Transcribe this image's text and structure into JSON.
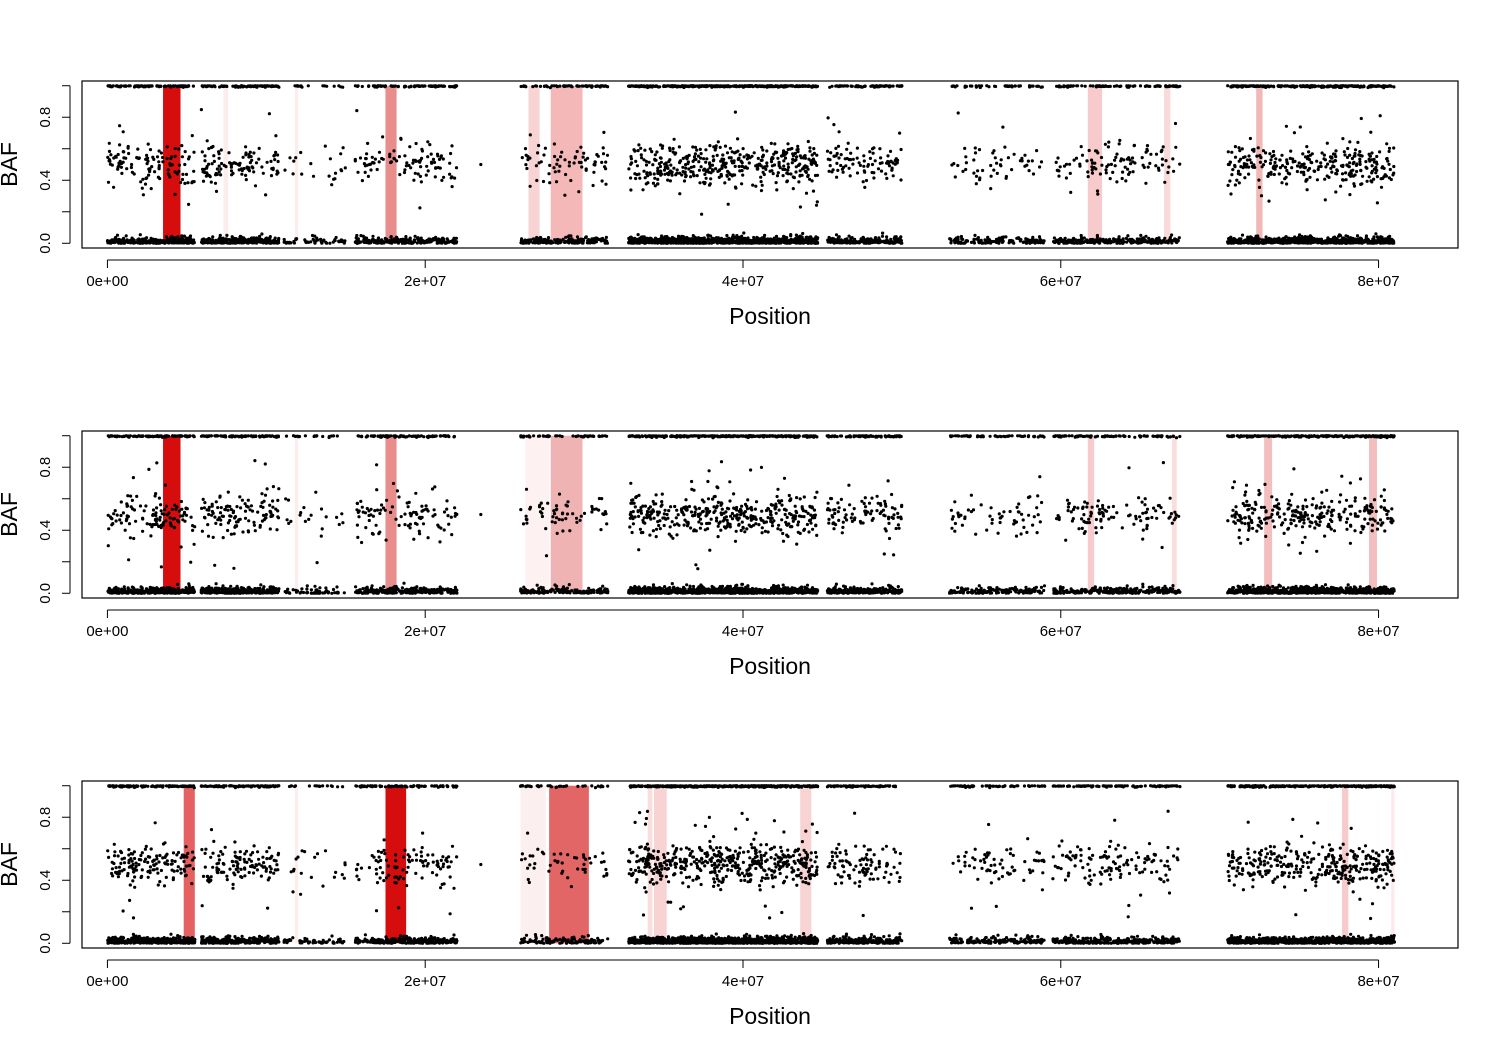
{
  "chart_data": [
    {
      "type": "scatter",
      "xlabel": "Position",
      "ylabel": "BAF",
      "xlim": [
        -1600000,
        85000000
      ],
      "ylim": [
        -0.03,
        1.03
      ],
      "x_ticks": [
        0,
        20000000,
        40000000,
        60000000,
        80000000
      ],
      "x_tick_labels": [
        "0e+00",
        "2e+07",
        "4e+07",
        "6e+07",
        "8e+07"
      ],
      "y_ticks": [
        0.0,
        0.4,
        0.8
      ],
      "y_tick_labels": [
        "0.0",
        "0.4",
        "0.8"
      ],
      "point_color": "#000000",
      "highlight_regions": [
        {
          "start": 3500000,
          "end": 4600000,
          "color": "#d40000",
          "opacity": 0.95
        },
        {
          "start": 17500000,
          "end": 18200000,
          "color": "#e06666",
          "opacity": 0.75
        },
        {
          "start": 26500000,
          "end": 27200000,
          "color": "#f4b6b6",
          "opacity": 0.6
        },
        {
          "start": 27900000,
          "end": 29900000,
          "color": "#f0a0a0",
          "opacity": 0.75
        },
        {
          "start": 61700000,
          "end": 62600000,
          "color": "#f0a0a0",
          "opacity": 0.55
        },
        {
          "start": 66500000,
          "end": 66900000,
          "color": "#f4b6b6",
          "opacity": 0.5
        },
        {
          "start": 72300000,
          "end": 72700000,
          "color": "#e88888",
          "opacity": 0.6
        },
        {
          "start": 7300000,
          "end": 7600000,
          "color": "#f7c8c8",
          "opacity": 0.35
        },
        {
          "start": 11800000,
          "end": 12000000,
          "color": "#f7c8c8",
          "opacity": 0.35
        }
      ],
      "clusters": [
        {
          "start": 0,
          "end": 5500000,
          "density": 1.0
        },
        {
          "start": 5900000,
          "end": 10800000,
          "density": 1.0
        },
        {
          "start": 11100000,
          "end": 15000000,
          "density": 0.25
        },
        {
          "start": 15600000,
          "end": 22000000,
          "density": 0.7
        },
        {
          "start": 26000000,
          "end": 31500000,
          "density": 0.6
        },
        {
          "start": 32800000,
          "end": 44700000,
          "density": 1.6
        },
        {
          "start": 45300000,
          "end": 50000000,
          "density": 0.9
        },
        {
          "start": 53000000,
          "end": 59000000,
          "density": 0.4
        },
        {
          "start": 59500000,
          "end": 67500000,
          "density": 0.6
        },
        {
          "start": 70500000,
          "end": 81000000,
          "density": 1.3
        }
      ]
    },
    {
      "type": "scatter",
      "xlabel": "Position",
      "ylabel": "BAF",
      "xlim": [
        -1600000,
        85000000
      ],
      "ylim": [
        -0.03,
        1.03
      ],
      "x_ticks": [
        0,
        20000000,
        40000000,
        60000000,
        80000000
      ],
      "x_tick_labels": [
        "0e+00",
        "2e+07",
        "4e+07",
        "6e+07",
        "8e+07"
      ],
      "y_ticks": [
        0.0,
        0.4,
        0.8
      ],
      "y_tick_labels": [
        "0.0",
        "0.4",
        "0.8"
      ],
      "point_color": "#000000",
      "highlight_regions": [
        {
          "start": 3500000,
          "end": 4600000,
          "color": "#d40000",
          "opacity": 0.95
        },
        {
          "start": 17500000,
          "end": 18200000,
          "color": "#e06666",
          "opacity": 0.75
        },
        {
          "start": 27900000,
          "end": 29900000,
          "color": "#eca0a0",
          "opacity": 0.8
        },
        {
          "start": 26300000,
          "end": 27800000,
          "color": "#f9dcdc",
          "opacity": 0.4
        },
        {
          "start": 61700000,
          "end": 62100000,
          "color": "#f0a0a0",
          "opacity": 0.55
        },
        {
          "start": 67000000,
          "end": 67300000,
          "color": "#f4b6b6",
          "opacity": 0.45
        },
        {
          "start": 72800000,
          "end": 73300000,
          "color": "#e88888",
          "opacity": 0.55
        },
        {
          "start": 79400000,
          "end": 79900000,
          "color": "#e88888",
          "opacity": 0.55
        },
        {
          "start": 11800000,
          "end": 12000000,
          "color": "#f7c8c8",
          "opacity": 0.35
        }
      ],
      "clusters": [
        {
          "start": 0,
          "end": 5500000,
          "density": 1.0
        },
        {
          "start": 5900000,
          "end": 10800000,
          "density": 1.1
        },
        {
          "start": 11100000,
          "end": 15000000,
          "density": 0.25
        },
        {
          "start": 15600000,
          "end": 22000000,
          "density": 0.7
        },
        {
          "start": 26000000,
          "end": 31500000,
          "density": 0.5
        },
        {
          "start": 32800000,
          "end": 44700000,
          "density": 1.5
        },
        {
          "start": 45300000,
          "end": 50000000,
          "density": 0.9
        },
        {
          "start": 53000000,
          "end": 59000000,
          "density": 0.45
        },
        {
          "start": 59500000,
          "end": 67500000,
          "density": 0.6
        },
        {
          "start": 70500000,
          "end": 81000000,
          "density": 1.2
        }
      ]
    },
    {
      "type": "scatter",
      "xlabel": "Position",
      "ylabel": "BAF",
      "xlim": [
        -1600000,
        85000000
      ],
      "ylim": [
        -0.03,
        1.03
      ],
      "x_ticks": [
        0,
        20000000,
        40000000,
        60000000,
        80000000
      ],
      "x_tick_labels": [
        "0e+00",
        "2e+07",
        "4e+07",
        "6e+07",
        "8e+07"
      ],
      "y_ticks": [
        0.0,
        0.4,
        0.8
      ],
      "y_tick_labels": [
        "0.0",
        "0.4",
        "0.8"
      ],
      "point_color": "#000000",
      "highlight_regions": [
        {
          "start": 4800000,
          "end": 5500000,
          "color": "#e04444",
          "opacity": 0.85
        },
        {
          "start": 17500000,
          "end": 18800000,
          "color": "#d40000",
          "opacity": 0.95
        },
        {
          "start": 27800000,
          "end": 30300000,
          "color": "#e05555",
          "opacity": 0.9
        },
        {
          "start": 26000000,
          "end": 27600000,
          "color": "#f9dcdc",
          "opacity": 0.45
        },
        {
          "start": 34400000,
          "end": 35200000,
          "color": "#f4b6b6",
          "opacity": 0.6
        },
        {
          "start": 34000000,
          "end": 34300000,
          "color": "#f4b6b6",
          "opacity": 0.45
        },
        {
          "start": 43600000,
          "end": 44300000,
          "color": "#f4b6b6",
          "opacity": 0.6
        },
        {
          "start": 77700000,
          "end": 78100000,
          "color": "#f0a0a0",
          "opacity": 0.55
        },
        {
          "start": 80800000,
          "end": 81000000,
          "color": "#f7c8c8",
          "opacity": 0.4
        },
        {
          "start": 11800000,
          "end": 12000000,
          "color": "#f7c8c8",
          "opacity": 0.35
        }
      ],
      "clusters": [
        {
          "start": 0,
          "end": 5500000,
          "density": 1.2
        },
        {
          "start": 5900000,
          "end": 10800000,
          "density": 1.1
        },
        {
          "start": 11100000,
          "end": 15000000,
          "density": 0.25
        },
        {
          "start": 15600000,
          "end": 22000000,
          "density": 0.7
        },
        {
          "start": 26000000,
          "end": 31500000,
          "density": 0.4
        },
        {
          "start": 32800000,
          "end": 44700000,
          "density": 1.8
        },
        {
          "start": 45300000,
          "end": 50000000,
          "density": 0.9
        },
        {
          "start": 53000000,
          "end": 59000000,
          "density": 0.5
        },
        {
          "start": 59500000,
          "end": 67500000,
          "density": 0.7
        },
        {
          "start": 70500000,
          "end": 81000000,
          "density": 1.4
        }
      ]
    }
  ]
}
